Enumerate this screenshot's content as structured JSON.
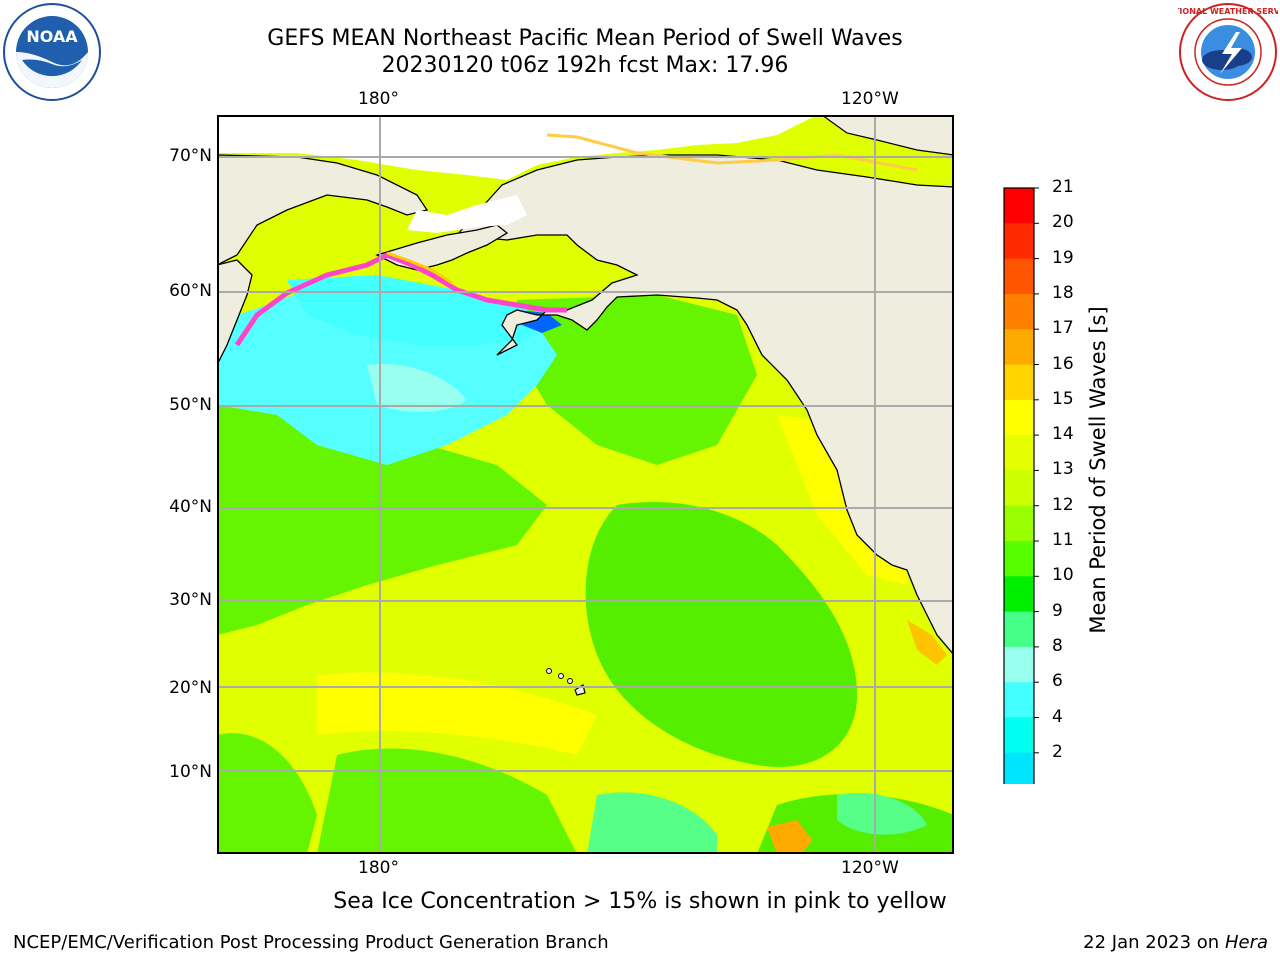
{
  "title": {
    "line1": "GEFS MEAN Northeast Pacific Mean Period of Swell Waves",
    "line2": "20230120 t06z 192h fcst   Max: 17.96"
  },
  "axes": {
    "lon_top": [
      "180°",
      "120°W"
    ],
    "lon_bottom": [
      "180°",
      "120°W"
    ],
    "lat": [
      "70°N",
      "60°N",
      "50°N",
      "40°N",
      "30°N",
      "20°N",
      "10°N"
    ]
  },
  "colorbar": {
    "title": "Mean Period of Swell Waves [s]",
    "ticks": [
      "21",
      "20",
      "19",
      "18",
      "17",
      "16",
      "15",
      "14",
      "13",
      "12",
      "11",
      "10",
      "9",
      "8",
      "6",
      "4",
      "2"
    ],
    "colors": [
      "#ff0000",
      "#ff2a00",
      "#ff5500",
      "#ff7f00",
      "#ffaa00",
      "#ffd400",
      "#ffff00",
      "#e6ff00",
      "#ccff00",
      "#99ff00",
      "#55ff00",
      "#00ee00",
      "#44ff88",
      "#99ffee",
      "#44ffff",
      "#00ffee",
      "#00e5ff",
      "#0080ff",
      "#0000ff"
    ]
  },
  "footnote": "Sea Ice Concentration > 15% is shown in pink to yellow",
  "credit_left": "NCEP/EMC/Verification Post Processing Product Generation Branch",
  "credit_right_date": "22 Jan 2023 on",
  "credit_right_host": "Hera",
  "logos": {
    "noaa": "NOAA",
    "nws": "NATIONAL WEATHER SERVICE"
  }
}
